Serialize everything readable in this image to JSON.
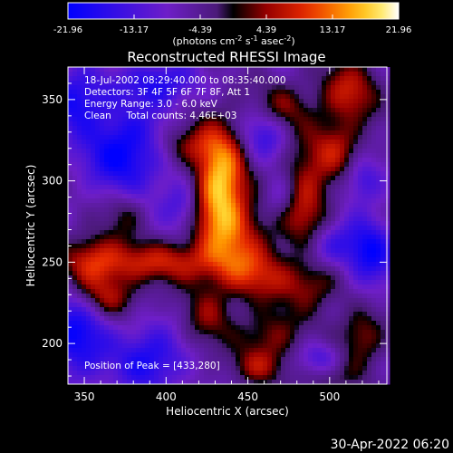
{
  "chart_data": {
    "type": "heatmap",
    "colorbar": {
      "ticks": [
        "-21.96",
        "-13.17",
        "-4.39",
        "4.39",
        "13.17",
        "21.96"
      ],
      "vmin": -21.96,
      "vmax": 21.96,
      "unit_prefix": "(photons cm",
      "unit_exp1": "-2",
      "unit_mid": " s",
      "unit_exp2": "-1",
      "unit_mid2": " asec",
      "unit_exp3": "-2",
      "unit_suffix": ")"
    },
    "title": "Reconstructed RHESSI Image",
    "info_lines": [
      "18-Jul-2002 08:29:40.000 to 08:35:40.000",
      "Detectors: 3F 4F 5F 6F 7F 8F, Att 1",
      "Energy Range: 3.0 - 6.0 keV",
      "Clean     Total counts: 4.46E+03"
    ],
    "peak_label": "Position of Peak = [433,280]",
    "peak": {
      "x": 433,
      "y": 280
    },
    "xlabel": "Heliocentric X (arcsec)",
    "ylabel": "Heliocentric Y (arcsec)",
    "xlim": [
      340,
      535
    ],
    "ylim": [
      175,
      370
    ],
    "xticks": [
      350,
      400,
      450,
      500
    ],
    "yticks": [
      200,
      250,
      300,
      350
    ],
    "hot_blobs": [
      {
        "x": 433,
        "y": 300,
        "amp": 24,
        "sx": 11,
        "sy": 24
      },
      {
        "x": 442,
        "y": 265,
        "amp": 12,
        "sx": 18,
        "sy": 18
      },
      {
        "x": 410,
        "y": 322,
        "amp": 10,
        "sx": 13,
        "sy": 9
      },
      {
        "x": 395,
        "y": 250,
        "amp": 13,
        "sx": 30,
        "sy": 9
      },
      {
        "x": 355,
        "y": 250,
        "amp": 12,
        "sx": 13,
        "sy": 13
      },
      {
        "x": 365,
        "y": 228,
        "amp": 11,
        "sx": 13,
        "sy": 9
      },
      {
        "x": 425,
        "y": 215,
        "amp": 9,
        "sx": 11,
        "sy": 14
      },
      {
        "x": 485,
        "y": 288,
        "amp": 14,
        "sx": 11,
        "sy": 24
      },
      {
        "x": 505,
        "y": 320,
        "amp": 11,
        "sx": 11,
        "sy": 13
      },
      {
        "x": 512,
        "y": 355,
        "amp": 13,
        "sx": 13,
        "sy": 14
      },
      {
        "x": 470,
        "y": 345,
        "amp": 10,
        "sx": 13,
        "sy": 11
      },
      {
        "x": 455,
        "y": 240,
        "amp": 10,
        "sx": 16,
        "sy": 11
      },
      {
        "x": 490,
        "y": 235,
        "amp": 9,
        "sx": 13,
        "sy": 11
      },
      {
        "x": 465,
        "y": 205,
        "amp": 10,
        "sx": 14,
        "sy": 12
      },
      {
        "x": 520,
        "y": 205,
        "amp": 11,
        "sx": 10,
        "sy": 13
      },
      {
        "x": 500,
        "y": 180,
        "amp": 8,
        "sx": 12,
        "sy": 9
      },
      {
        "x": 455,
        "y": 185,
        "amp": 9,
        "sx": 12,
        "sy": 8
      },
      {
        "x": 375,
        "y": 280,
        "amp": 7,
        "sx": 9,
        "sy": 10
      }
    ],
    "cold_blobs": [
      {
        "x": 375,
        "y": 318,
        "amp": -16,
        "sx": 18,
        "sy": 18
      },
      {
        "x": 345,
        "y": 350,
        "amp": -13,
        "sx": 13,
        "sy": 14
      },
      {
        "x": 395,
        "y": 360,
        "amp": -12,
        "sx": 16,
        "sy": 10
      },
      {
        "x": 460,
        "y": 330,
        "amp": -10,
        "sx": 10,
        "sy": 12
      },
      {
        "x": 345,
        "y": 205,
        "amp": -14,
        "sx": 14,
        "sy": 20
      },
      {
        "x": 390,
        "y": 190,
        "amp": -13,
        "sx": 15,
        "sy": 14
      },
      {
        "x": 500,
        "y": 260,
        "amp": -10,
        "sx": 12,
        "sy": 10
      },
      {
        "x": 525,
        "y": 255,
        "amp": -13,
        "sx": 10,
        "sy": 16
      },
      {
        "x": 520,
        "y": 300,
        "amp": -9,
        "sx": 8,
        "sy": 10
      },
      {
        "x": 410,
        "y": 285,
        "amp": -9,
        "sx": 9,
        "sy": 11
      },
      {
        "x": 495,
        "y": 190,
        "amp": -10,
        "sx": 10,
        "sy": 8
      },
      {
        "x": 470,
        "y": 290,
        "amp": -8,
        "sx": 8,
        "sy": 10
      }
    ]
  },
  "footer_timestamp": "30-Apr-2022 06:20"
}
